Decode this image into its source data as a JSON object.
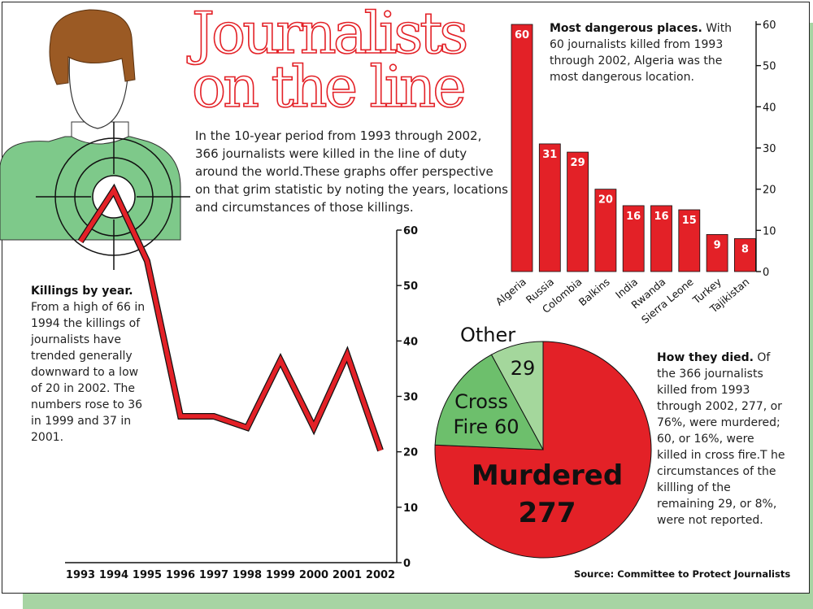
{
  "title_lines": [
    "Journalists",
    "on the line"
  ],
  "intro": "In the 10-year period from 1993 through 2002, 366 journalists were killed in the line of duty around the world.These graphs offer perspective on that grim statistic by noting the years, locations and circumstances of those killings.",
  "notes": {
    "by_year_head": "Killings by year.",
    "by_year_body": "From a high of 66 in 1994 the killings of journalists have trended generally downward to a low of 20 in 2002. The numbers rose to 36 in 1999 and 37 in 2001.",
    "places_head": "Most dangerous places.",
    "places_body": "With 60 journalists killed from 1993 through 2002, Algeria was the most dangerous location.",
    "died_head": "How they died.",
    "died_body": "Of the 366 journalists killed from 1993 through 2002, 277, or 76%, were murdered; 60, or 16%, were killed in cross fire.T he circumstances of the killling of the remaining 29, or 8%, were not reported."
  },
  "source": "Source: Committee to Protect Journalists",
  "colors": {
    "red": "#e32127",
    "green": "#6dbf6c",
    "light_green": "#a4d79c",
    "figure_green": "#7ec98a",
    "hair": "#9b5a24"
  },
  "chart_data": [
    {
      "type": "line",
      "x": [
        1993,
        1994,
        1995,
        1996,
        1997,
        1998,
        1999,
        2000,
        2001,
        2002
      ],
      "values": [
        null,
        null,
        null,
        26,
        26,
        24,
        36,
        24,
        37,
        20
      ],
      "ylim": [
        0,
        60
      ],
      "yticks": [
        0,
        10,
        20,
        30,
        40,
        50,
        60
      ]
    },
    {
      "type": "bar",
      "categories": [
        "Algeria",
        "Russia",
        "Colombia",
        "Balkins",
        "India",
        "Rwanda",
        "Sierra Leone",
        "Turkey",
        "Tajikistan"
      ],
      "values": [
        60,
        31,
        29,
        20,
        16,
        16,
        15,
        9,
        8
      ],
      "ylim": [
        0,
        60
      ],
      "yticks": [
        0,
        10,
        20,
        30,
        40,
        50,
        60
      ]
    },
    {
      "type": "pie",
      "slices": [
        {
          "label": "Murdered",
          "value": 277,
          "color": "#e32127"
        },
        {
          "label": "Cross Fire",
          "value": 60,
          "color": "#6dbf6c"
        },
        {
          "label": "Other",
          "value": 29,
          "color": "#a4d79c"
        }
      ]
    }
  ]
}
